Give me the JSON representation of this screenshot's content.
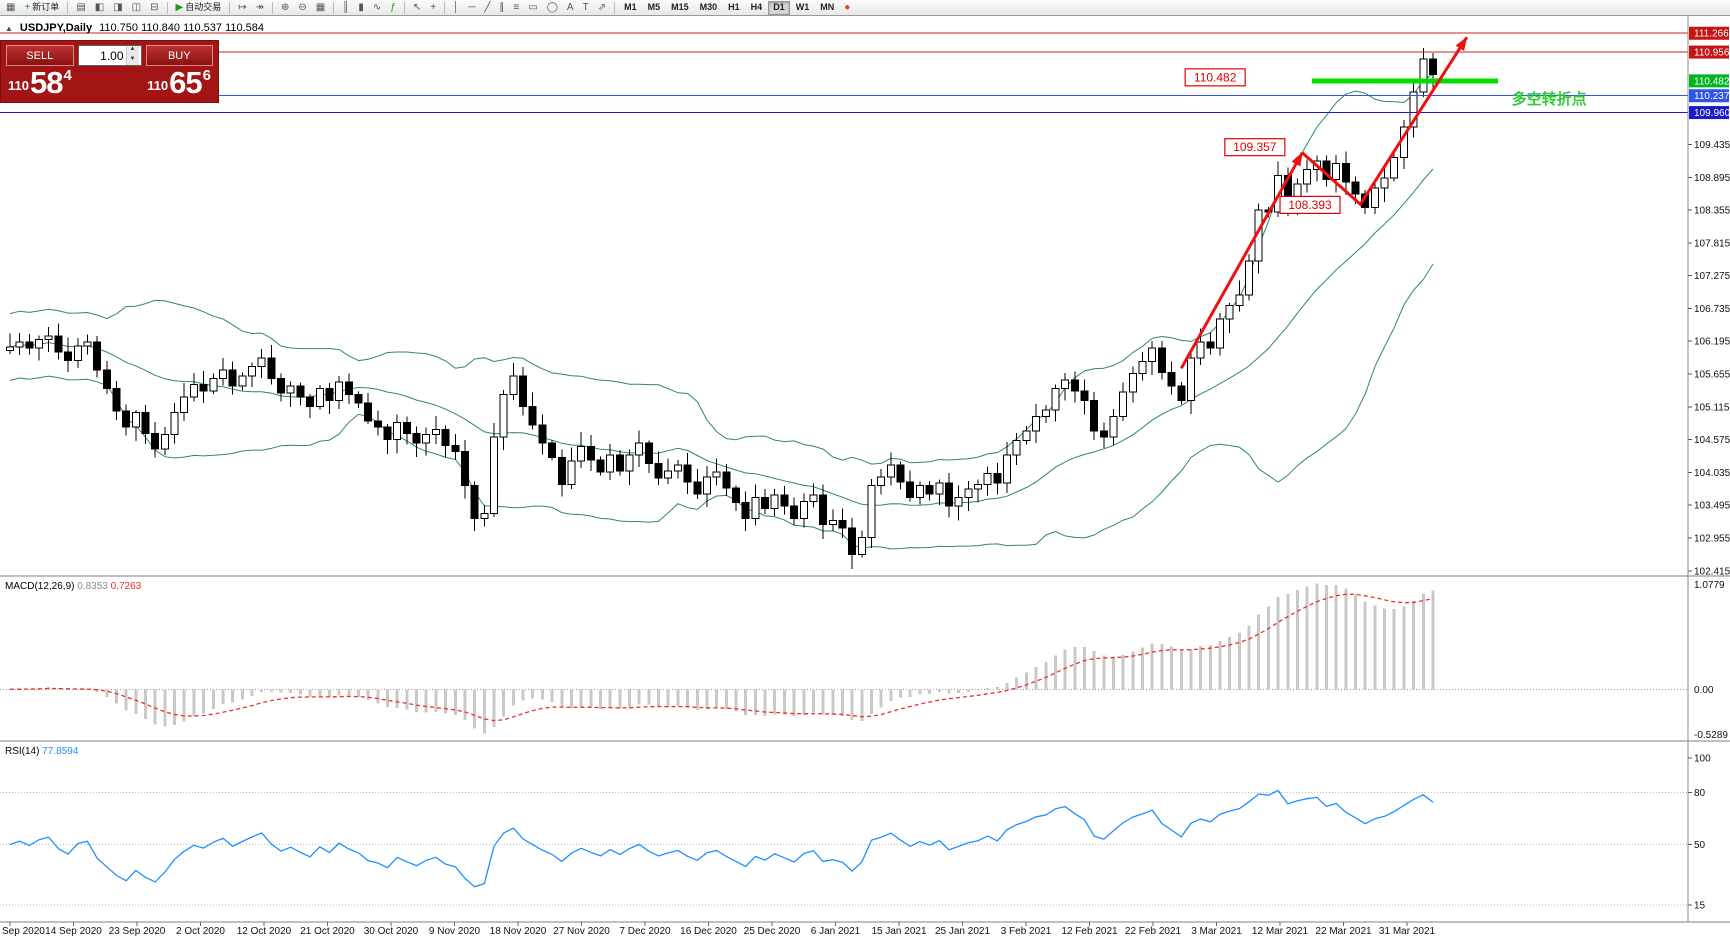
{
  "colors": {
    "bull": "#FFFFFF",
    "bear": "#000000",
    "candle_outline": "#000000",
    "bollinger": "#2E8B57",
    "macd_hist": "#C8C8C8",
    "macd_signal": "#E83030",
    "rsi": "#1E90FF",
    "annotation_red": "#F01010",
    "panel_red": "#A31414",
    "note_green": "#33CC33",
    "axis_line": "#8C8C8C"
  },
  "toolbar": {
    "items": [
      {
        "name": "charts-window-icon",
        "glyph": "▦"
      },
      {
        "name": "new-order-button",
        "glyph": "+",
        "glyph_color": "#1a9c1a",
        "label": "新订单"
      },
      {
        "name": "sep-1",
        "type": "sep"
      },
      {
        "name": "profiles-icon",
        "glyph": "▤"
      },
      {
        "name": "market-watch-icon",
        "glyph": "◧"
      },
      {
        "name": "data-window-icon",
        "glyph": "◨"
      },
      {
        "name": "navigator-icon",
        "glyph": "◫"
      },
      {
        "name": "terminal-icon",
        "glyph": "⊟"
      },
      {
        "name": "sep-2",
        "type": "sep"
      },
      {
        "name": "autotrading-button",
        "glyph": "▶",
        "glyph_color": "#1a9c1a",
        "label": "自动交易"
      },
      {
        "name": "sep-3",
        "type": "sep"
      },
      {
        "name": "chart-shift-icon",
        "glyph": "↦"
      },
      {
        "name": "auto-scroll-icon",
        "glyph": "↠"
      },
      {
        "name": "sep-4",
        "type": "sep"
      },
      {
        "name": "zoom-in-icon",
        "glyph": "⊕"
      },
      {
        "name": "zoom-out-icon",
        "glyph": "⊖"
      },
      {
        "name": "tile-windows-icon",
        "glyph": "▦"
      },
      {
        "name": "sep-5",
        "type": "sep"
      },
      {
        "name": "bar-chart-icon",
        "glyph": "║"
      },
      {
        "name": "candlestick-chart-icon",
        "glyph": "▮"
      },
      {
        "name": "line-chart-icon",
        "glyph": "∿"
      },
      {
        "name": "indicators-icon",
        "glyph": "ƒ",
        "glyph_color": "#1a9c1a"
      },
      {
        "name": "sep-6",
        "type": "sep"
      },
      {
        "name": "cursor-icon",
        "glyph": "↖"
      },
      {
        "name": "crosshair-icon",
        "glyph": "+"
      },
      {
        "name": "sep-7",
        "type": "sep"
      },
      {
        "name": "vertical-line-icon",
        "glyph": "│"
      },
      {
        "name": "horizontal-line-icon",
        "glyph": "─"
      },
      {
        "name": "trendline-icon",
        "glyph": "╱"
      },
      {
        "name": "channel-icon",
        "glyph": "∥"
      },
      {
        "name": "fibonacci-icon",
        "glyph": "≡"
      },
      {
        "name": "shapes-icon",
        "glyph": "▭"
      },
      {
        "name": "ellipse-icon",
        "glyph": "◯"
      },
      {
        "name": "text-icon",
        "glyph": "A"
      },
      {
        "name": "label-icon",
        "glyph": "T"
      },
      {
        "name": "arrow-tool-icon",
        "glyph": "⇗"
      },
      {
        "name": "sep-8",
        "type": "sep"
      },
      {
        "name": "tf-m1",
        "type": "tf",
        "label": "M1"
      },
      {
        "name": "tf-m5",
        "type": "tf",
        "label": "M5"
      },
      {
        "name": "tf-m15",
        "type": "tf",
        "label": "M15"
      },
      {
        "name": "tf-m30",
        "type": "tf",
        "label": "M30"
      },
      {
        "name": "tf-h1",
        "type": "tf",
        "label": "H1"
      },
      {
        "name": "tf-h4",
        "type": "tf",
        "label": "H4"
      },
      {
        "name": "tf-d1",
        "type": "tf",
        "label": "D1",
        "active": true
      },
      {
        "name": "tf-w1",
        "type": "tf",
        "label": "W1"
      },
      {
        "name": "tf-mn",
        "type": "tf",
        "label": "MN"
      },
      {
        "name": "notification-icon",
        "glyph": "●",
        "glyph_color": "#e8421c"
      }
    ]
  },
  "trade_panel": {
    "sell_label": "SELL",
    "buy_label": "BUY",
    "lot_size": "1.00",
    "spinner_up": "▲",
    "spinner_down": "▼",
    "sell_price": {
      "figure": "110",
      "pips": "58",
      "point": "4"
    },
    "buy_price": {
      "figure": "110",
      "pips": "65",
      "point": "6"
    }
  },
  "chart_data": {
    "type": "candlestick",
    "symbol": "USDJPY",
    "timeframe": "Daily",
    "title_marker": "▲",
    "title_line": "USDJPY,Daily",
    "ohlc_line": "110.750 110.840 110.537 110.584",
    "current_bar": {
      "open": 110.75,
      "high": 110.84,
      "low": 110.537,
      "close": 110.584
    },
    "x_axis_labels": [
      "Sep 2020",
      "14 Sep 2020",
      "23 Sep 2020",
      "2 Oct 2020",
      "12 Oct 2020",
      "21 Oct 2020",
      "30 Oct 2020",
      "9 Nov 2020",
      "18 Nov 2020",
      "27 Nov 2020",
      "7 Dec 2020",
      "16 Dec 2020",
      "25 Dec 2020",
      "6 Jan 2021",
      "15 Jan 2021",
      "25 Jan 2021",
      "3 Feb 2021",
      "12 Feb 2021",
      "22 Feb 2021",
      "3 Mar 2021",
      "12 Mar 2021",
      "22 Mar 2021",
      "31 Mar 2021"
    ],
    "price_axis": {
      "ticks": [
        "109.435",
        "108.895",
        "108.355",
        "107.815",
        "107.275",
        "106.735",
        "106.195",
        "105.655",
        "105.115",
        "104.575",
        "104.035",
        "103.495",
        "102.955",
        "102.415"
      ],
      "highlighted": [
        {
          "value": "111.266",
          "bg": "#C41414"
        },
        {
          "value": "110.956",
          "bg": "#C41414"
        },
        {
          "value": "110.482",
          "bg": "#00B520"
        },
        {
          "value": "110.237",
          "bg": "#2F55E6"
        },
        {
          "value": "109.960",
          "bg": "#1A1ACC"
        }
      ]
    },
    "candles": {
      "first_open": 106.04,
      "closes": [
        106.1,
        106.18,
        106.08,
        106.22,
        106.28,
        106.02,
        105.88,
        106.12,
        106.18,
        105.72,
        105.42,
        105.05,
        104.78,
        105.02,
        104.68,
        104.42,
        104.66,
        105.02,
        105.28,
        105.48,
        105.38,
        105.58,
        105.72,
        105.46,
        105.62,
        105.78,
        105.92,
        105.58,
        105.34,
        105.46,
        105.28,
        105.12,
        105.42,
        105.22,
        105.52,
        105.32,
        105.18,
        104.88,
        104.78,
        104.58,
        104.86,
        104.68,
        104.52,
        104.66,
        104.74,
        104.48,
        104.38,
        103.82,
        103.28,
        103.36,
        104.62,
        105.32,
        105.62,
        105.12,
        104.82,
        104.52,
        104.28,
        103.84,
        104.22,
        104.46,
        104.24,
        104.04,
        104.32,
        104.06,
        104.32,
        104.52,
        104.18,
        103.94,
        104.06,
        104.16,
        103.88,
        103.68,
        103.96,
        104.04,
        103.78,
        103.54,
        103.28,
        103.62,
        103.44,
        103.66,
        103.48,
        103.28,
        103.56,
        103.66,
        103.18,
        103.24,
        103.12,
        102.68,
        102.96,
        103.82,
        103.96,
        104.16,
        103.88,
        103.62,
        103.82,
        103.68,
        103.86,
        103.48,
        103.62,
        103.76,
        103.84,
        104.02,
        103.86,
        104.32,
        104.56,
        104.72,
        104.96,
        105.06,
        105.42,
        105.56,
        105.38,
        105.22,
        104.72,
        104.62,
        104.96,
        105.36,
        105.66,
        105.86,
        106.08,
        105.68,
        105.46,
        105.22,
        105.92,
        106.18,
        106.08,
        106.56,
        106.78,
        106.96,
        107.52,
        108.36,
        108.32,
        108.92,
        108.46,
        108.78,
        109.02,
        109.16,
        108.86,
        109.12,
        108.82,
        108.62,
        108.4,
        108.72,
        108.88,
        109.22,
        109.72,
        110.3,
        110.84,
        110.584
      ]
    },
    "indicators": {
      "bollinger": {
        "name": "Bollinger Bands",
        "period": 20,
        "deviation": 2
      },
      "macd": {
        "label": "MACD(12,26,9)",
        "value_main": "0.8353",
        "value_signal": "0.7263",
        "axis_max": "1.0779",
        "axis_zero": "0.00",
        "axis_min": "-0.5289"
      },
      "rsi": {
        "label": "RSI(14)",
        "value": "77.8594",
        "axis_labels": [
          "100",
          "80",
          "50",
          "15"
        ],
        "levels": [
          80,
          50,
          15
        ]
      }
    },
    "overlays": {
      "hlines": [
        {
          "price": 111.266,
          "color": "#CC2020",
          "width": 1
        },
        {
          "price": 110.956,
          "color": "#CC2020",
          "width": 1
        },
        {
          "price": 110.237,
          "color": "#3355E6",
          "width": 1
        },
        {
          "price": 109.96,
          "color": "#1A1ACC",
          "width": 1.3
        }
      ],
      "support_segment": {
        "price": 110.482,
        "from_index": 134.5,
        "to_index": 153.7,
        "color": "#00DE00",
        "width": 5
      },
      "trend_arrows": [
        {
          "points": [
            [
              121,
              105.75
            ],
            [
              133.5,
              109.3
            ]
          ]
        },
        {
          "points": [
            [
              133.5,
              109.3
            ],
            [
              139.5,
              108.45
            ],
            [
              150.5,
              111.2
            ]
          ]
        }
      ],
      "price_tags": [
        {
          "text": "110.482",
          "index": 124.5,
          "price": 110.54
        },
        {
          "text": "109.357",
          "index": 128.6,
          "price": 109.39
        },
        {
          "text": "108.393",
          "index": 134.3,
          "price": 108.44
        }
      ],
      "note": {
        "text": "多空转折点",
        "index": 159,
        "price": 110.18
      }
    }
  }
}
